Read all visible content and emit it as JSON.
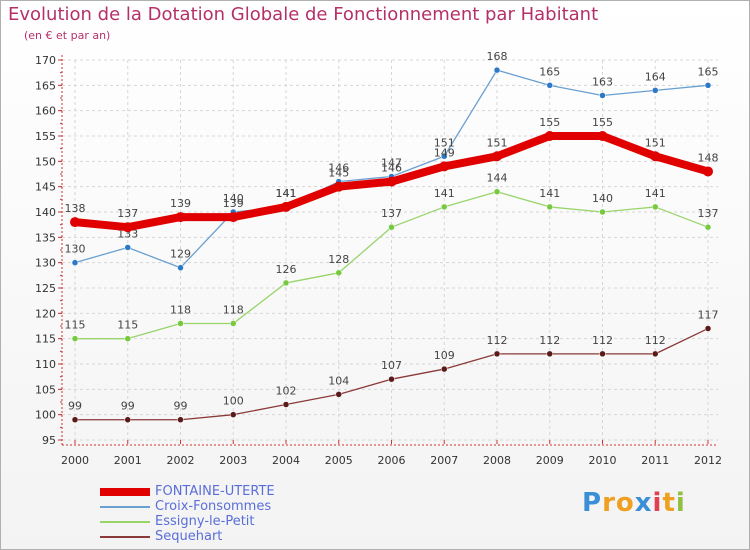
{
  "title": "Evolution de la Dotation Globale de Fonctionnement par Habitant",
  "subtitle": "(en € et par an)",
  "brand": {
    "text": "Proxiti",
    "letters": [
      "P",
      "r",
      "o",
      "x",
      "i",
      "t",
      "i"
    ],
    "colors": [
      "#3b8fd6",
      "#f0a020",
      "#f0a020",
      "#3b8fd6",
      "#e04050",
      "#f0a020",
      "#90c040"
    ]
  },
  "chart_data": {
    "type": "line",
    "x": [
      "2000",
      "2001",
      "2002",
      "2003",
      "2004",
      "2005",
      "2006",
      "2007",
      "2008",
      "2009",
      "2010",
      "2011",
      "2012"
    ],
    "ylim": [
      95,
      170
    ],
    "yticks": [
      95,
      100,
      105,
      110,
      115,
      120,
      125,
      130,
      135,
      140,
      145,
      150,
      155,
      160,
      165,
      170
    ],
    "grid": true,
    "legend_position": "bottom-left",
    "series": [
      {
        "name": "FONTAINE-UTERTE",
        "values": [
          138,
          137,
          139,
          139,
          141,
          145,
          146,
          149,
          151,
          155,
          155,
          151,
          148
        ],
        "color": "#e00000",
        "marker": "#e00000",
        "width": 8,
        "labels": [
          "138",
          "137",
          "139",
          "139",
          "141",
          "145",
          "146",
          "149",
          "151",
          "155",
          "155",
          "151",
          "148"
        ]
      },
      {
        "name": "Croix-Fonsommes",
        "values": [
          130,
          133,
          129,
          140,
          141,
          146,
          147,
          151,
          168,
          165,
          163,
          164,
          165
        ],
        "color": "#6aa0d0",
        "marker": "#2d79c7",
        "width": 1.3,
        "labels": [
          "130",
          "133",
          "129",
          "140",
          "141",
          "146",
          "147",
          "151",
          "168",
          "165",
          "163",
          "164",
          "165"
        ]
      },
      {
        "name": "Essigny-le-Petit",
        "values": [
          115,
          115,
          118,
          118,
          126,
          128,
          137,
          141,
          144,
          141,
          140,
          141,
          137
        ],
        "color": "#99d46a",
        "marker": "#77c940",
        "width": 1.3,
        "labels": [
          "115",
          "115",
          "118",
          "118",
          "126",
          "128",
          "137",
          "141",
          "144",
          "141",
          "140",
          "141",
          "137"
        ]
      },
      {
        "name": "Sequehart",
        "values": [
          99,
          99,
          99,
          100,
          102,
          104,
          107,
          109,
          112,
          112,
          112,
          112,
          117
        ],
        "color": "#8b3a3a",
        "marker": "#5a1a1a",
        "width": 1.3,
        "labels": [
          "99",
          "99",
          "99",
          "100",
          "102",
          "104",
          "107",
          "109",
          "112",
          "112",
          "112",
          "112",
          "117"
        ]
      }
    ]
  }
}
